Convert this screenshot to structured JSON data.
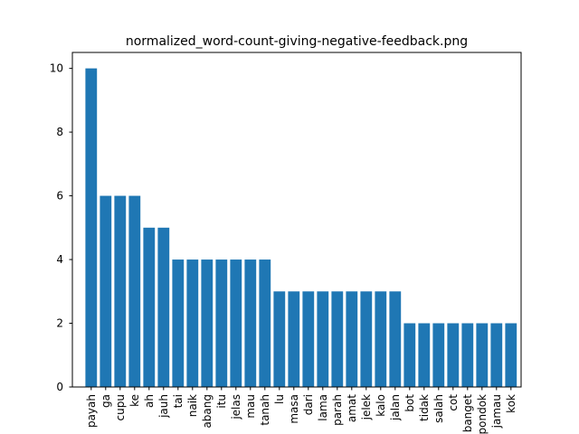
{
  "chart_data": {
    "type": "bar",
    "title": "normalized_word-count-giving-negative-feedback.png",
    "xlabel": "",
    "ylabel": "",
    "categories": [
      "payah",
      "ga",
      "cupu",
      "ke",
      "ah",
      "jauh",
      "tai",
      "naik",
      "abang",
      "itu",
      "jelas",
      "mau",
      "tanah",
      "lu",
      "masa",
      "dari",
      "lama",
      "parah",
      "amat",
      "jelek",
      "kalo",
      "jalan",
      "bot",
      "tidak",
      "salah",
      "cot",
      "banget",
      "pondok",
      "jamau",
      "kok"
    ],
    "values": [
      10,
      6,
      6,
      6,
      5,
      5,
      4,
      4,
      4,
      4,
      4,
      4,
      4,
      3,
      3,
      3,
      3,
      3,
      3,
      3,
      3,
      3,
      2,
      2,
      2,
      2,
      2,
      2,
      2,
      2
    ],
    "ylim": [
      0,
      10.5
    ],
    "yticks": [
      0,
      2,
      4,
      6,
      8,
      10
    ],
    "bar_color": "#1f77b4",
    "grid": false,
    "legend": "none"
  }
}
